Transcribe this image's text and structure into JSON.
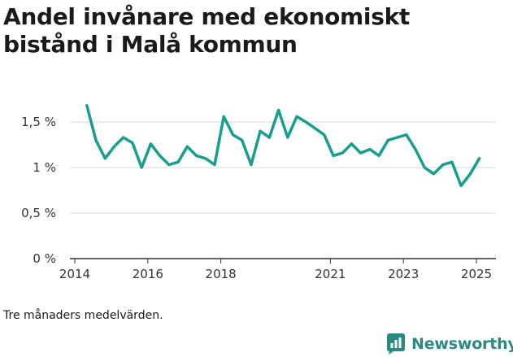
{
  "header": {
    "title": "Andel invånare med ekonomiskt bistånd i Malå kommun"
  },
  "footer": {
    "caption": "Tre månaders medelvärden.",
    "brand": "Newsworthy"
  },
  "colors": {
    "series": "#179e8e",
    "brand": "#2a8a7f",
    "grid": "#d9d9d9",
    "axis": "#333333"
  },
  "chart_data": {
    "type": "line",
    "title": "Andel invånare med ekonomiskt bistånd i Malå kommun",
    "xlabel": "",
    "ylabel": "",
    "xlim": [
      2014.0,
      2025.4
    ],
    "ylim": [
      0,
      1.5
    ],
    "x_ticks": [
      2014,
      2016,
      2018,
      2021,
      2023,
      2025
    ],
    "y_ticks": [
      {
        "value": 0,
        "label": "0 %"
      },
      {
        "value": 0.5,
        "label": "0,5 %"
      },
      {
        "value": 1,
        "label": "1 %"
      },
      {
        "value": 1.5,
        "label": "1,5 %"
      }
    ],
    "grid": "horizontal",
    "legend": "none",
    "series": [
      {
        "x": [
          2014.33,
          2014.58,
          2014.83,
          2015.08,
          2015.33,
          2015.58,
          2015.83,
          2016.08,
          2016.33,
          2016.58,
          2016.83,
          2017.08,
          2017.33,
          2017.58,
          2017.83,
          2018.08,
          2018.33,
          2018.58,
          2018.83,
          2019.08,
          2019.33,
          2019.58,
          2019.83,
          2020.08,
          2020.33,
          2020.58,
          2020.83,
          2021.08,
          2021.33,
          2021.58,
          2021.83,
          2022.08,
          2022.33,
          2022.58,
          2022.83,
          2023.08,
          2023.33,
          2023.58,
          2023.83,
          2024.08,
          2024.33,
          2024.58,
          2024.83,
          2025.08
        ],
        "values": [
          1.68,
          1.3,
          1.1,
          1.23,
          1.33,
          1.27,
          1.0,
          1.26,
          1.13,
          1.03,
          1.06,
          1.23,
          1.13,
          1.1,
          1.03,
          1.56,
          1.36,
          1.3,
          1.03,
          1.4,
          1.33,
          1.63,
          1.33,
          1.56,
          1.5,
          1.43,
          1.36,
          1.13,
          1.16,
          1.26,
          1.16,
          1.2,
          1.13,
          1.3,
          1.33,
          1.36,
          1.2,
          1.0,
          0.93,
          1.03,
          1.06,
          0.8,
          0.93,
          1.1
        ]
      }
    ]
  }
}
